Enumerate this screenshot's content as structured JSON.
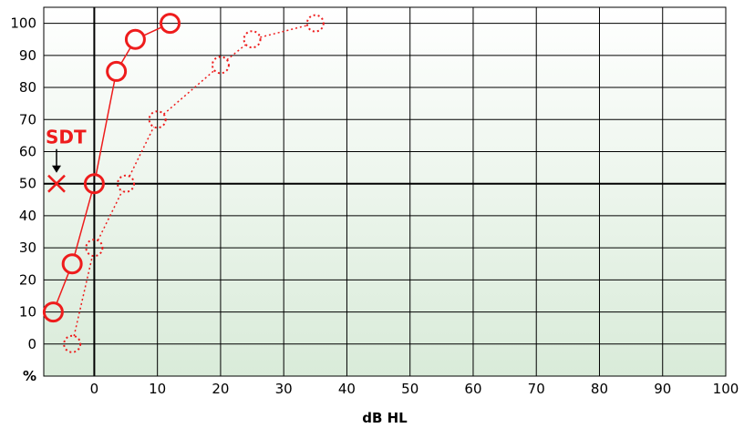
{
  "chart_data": {
    "type": "scatter",
    "xlabel": "dB HL",
    "ylabel": "%",
    "xlim": [
      -8,
      100
    ],
    "ylim": [
      -10,
      105
    ],
    "x_ticks": [
      0,
      10,
      20,
      30,
      40,
      50,
      60,
      70,
      80,
      90,
      100
    ],
    "y_ticks": [
      0,
      10,
      20,
      30,
      40,
      50,
      60,
      70,
      80,
      90,
      100
    ],
    "y_unit_label": "%",
    "grid": true,
    "colors": {
      "series": "#ee1c1c",
      "grid": "#000000",
      "background_top": "#ffffff",
      "background_bottom": "#d9ebd9"
    },
    "series": [
      {
        "style": "solid",
        "points": [
          {
            "x": -6.5,
            "y": 10
          },
          {
            "x": -3.5,
            "y": 25
          },
          {
            "x": 0,
            "y": 50
          },
          {
            "x": 3.5,
            "y": 85
          },
          {
            "x": 6.5,
            "y": 95
          },
          {
            "x": 12,
            "y": 100
          }
        ]
      },
      {
        "style": "dotted",
        "points": [
          {
            "x": -3.5,
            "y": 0
          },
          {
            "x": 0,
            "y": 30
          },
          {
            "x": 5,
            "y": 50
          },
          {
            "x": 10,
            "y": 70
          },
          {
            "x": 20,
            "y": 87
          },
          {
            "x": 25,
            "y": 95
          },
          {
            "x": 35,
            "y": 100
          }
        ]
      }
    ],
    "annotations": [
      {
        "label": "SDT",
        "x": -8,
        "y": 50,
        "marker": "x"
      }
    ]
  }
}
